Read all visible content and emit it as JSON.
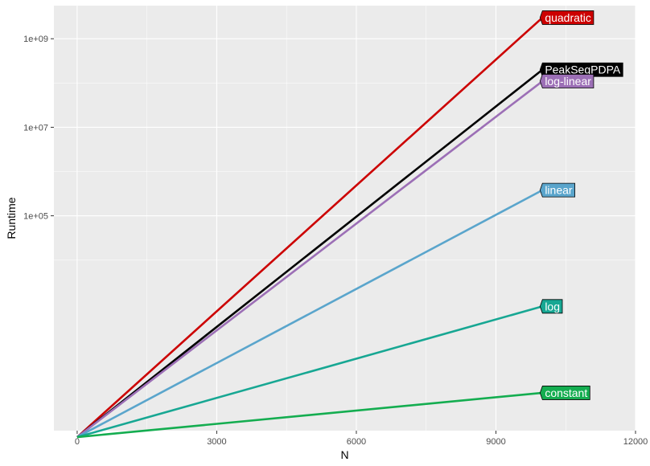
{
  "chart_data": {
    "type": "line",
    "xlabel": "N",
    "ylabel": "Runtime",
    "y_scale": "log10",
    "xlim": [
      -500,
      12000
    ],
    "ylim": [
      1.4,
      5600000000
    ],
    "x_ticks": [
      {
        "value": 0,
        "label": "0"
      },
      {
        "value": 3000,
        "label": "3000"
      },
      {
        "value": 6000,
        "label": "6000"
      },
      {
        "value": 9000,
        "label": "9000"
      },
      {
        "value": 12000,
        "label": "12000"
      }
    ],
    "y_ticks": [
      {
        "value": 100000,
        "label": "1e+05"
      },
      {
        "value": 10000000,
        "label": "1e+07"
      },
      {
        "value": 1000000000,
        "label": "1e+09"
      }
    ],
    "grid": true,
    "legend": "none (direct labels at line ends)",
    "series": [
      {
        "name": "quadratic",
        "color": "#cc0000",
        "x": [
          1,
          10000
        ],
        "y": [
          1,
          3000000000
        ]
      },
      {
        "name": "PeakSegPDPA",
        "color": "#000000",
        "x": [
          1,
          10000
        ],
        "y": [
          1,
          200000000
        ]
      },
      {
        "name": "log-linear",
        "color": "#9c6fb6",
        "x": [
          1,
          10000
        ],
        "y": [
          1,
          110000000
        ]
      },
      {
        "name": "linear",
        "color": "#5aa5cc",
        "x": [
          1,
          10000
        ],
        "y": [
          1,
          380000
        ]
      },
      {
        "name": "log",
        "color": "#17a793",
        "x": [
          1,
          10000
        ],
        "y": [
          1,
          900
        ]
      },
      {
        "name": "constant",
        "color": "#14ad50",
        "x": [
          1,
          10000
        ],
        "y": [
          1,
          10
        ]
      }
    ]
  }
}
